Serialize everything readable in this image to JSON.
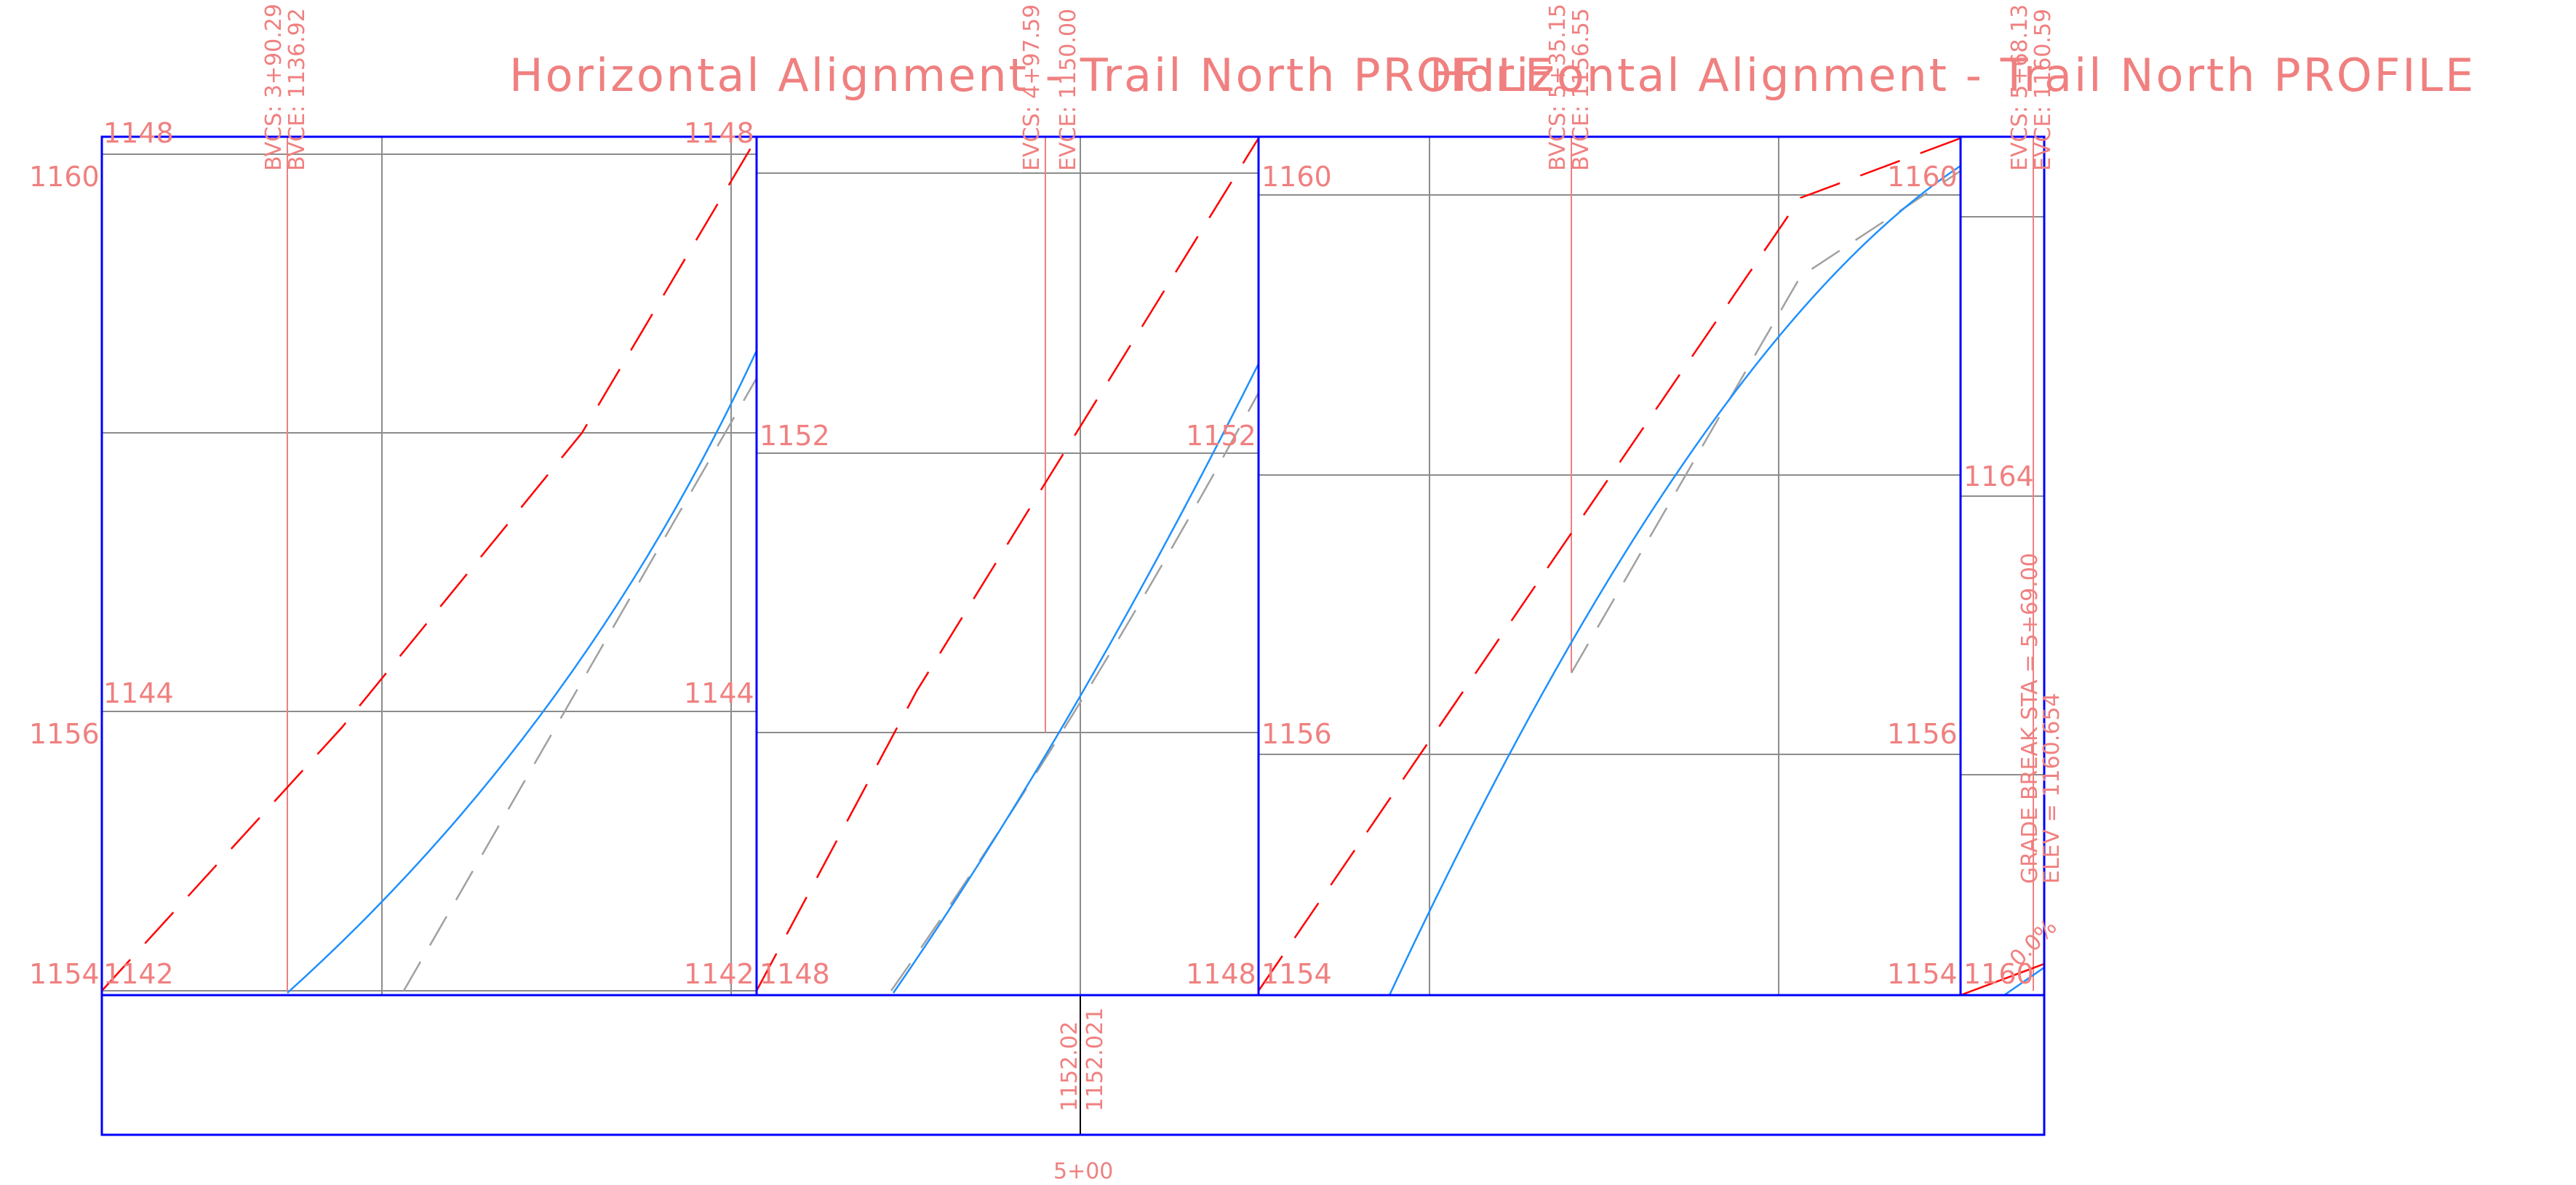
{
  "colors": {
    "background": "#ffffff",
    "frame": "#0000ff",
    "grid": "#8c8c8c",
    "text": "#f08080",
    "existing_ground": "#ff0000",
    "profile_curve": "#1e90ff",
    "proposed_dashed": "#a0a0a0"
  },
  "titles": [
    "Horizontal Alignment - Trail North PROFILE",
    "Horizontal Alignment - Trail North PROFILE"
  ],
  "panels": [
    {
      "name": "panel-1",
      "left_labels": {
        "top": "1160",
        "middle": "1156",
        "bottom": "1154"
      },
      "inner_left_labels": {
        "top": "1148",
        "middle": "1144",
        "bottom": "1142"
      },
      "inner_right_labels": {
        "top": "1148",
        "middle": "1144",
        "bottom": "1142"
      }
    },
    {
      "name": "panel-2",
      "left_labels": {
        "middle": "1152",
        "bottom": "1148"
      },
      "right_labels": {
        "middle": "1152",
        "bottom": "1148"
      }
    },
    {
      "name": "panel-3",
      "left_labels": {
        "top": "1160",
        "middle": "1156",
        "bottom": "1154"
      },
      "right_labels": {
        "top": "1160",
        "middle": "1156",
        "bottom": "1154"
      }
    },
    {
      "name": "panel-4",
      "labels": {
        "upper": "1164",
        "bottom": "1160"
      }
    }
  ],
  "curve_annotations": [
    {
      "id": "bvcs-1",
      "text": "BVCS:  3+90.29"
    },
    {
      "id": "bvce-1",
      "text": "BVCE:  1136.92"
    },
    {
      "id": "evcs-1",
      "text": "EVCS:  4+97.59"
    },
    {
      "id": "evce-1",
      "text": "EVCE:  1150.00"
    },
    {
      "id": "bvcs-2",
      "text": "BVCS:  5+35.15"
    },
    {
      "id": "bvce-2",
      "text": "BVCE:  1156.55"
    },
    {
      "id": "evcs-2",
      "text": "EVCS:  5+68.13"
    },
    {
      "id": "evce-2",
      "text": "EVCE:  1160.59"
    }
  ],
  "grade_break": {
    "station": "GRADE BREAK STA = 5+69.00",
    "elevation": "ELEV = 1160.654",
    "slope": "0.0%"
  },
  "bottom_band": {
    "value_1": "1152.02",
    "value_2": "1152.021",
    "station": "5+00"
  }
}
